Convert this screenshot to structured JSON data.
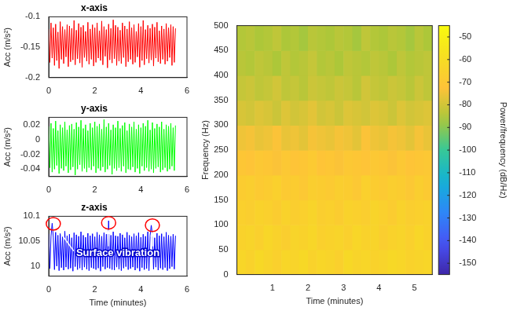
{
  "chart_data": [
    {
      "type": "line",
      "title": "x-axis",
      "y_label": "Acc (m/s²)",
      "grid": false,
      "xlim": [
        0,
        6
      ],
      "xticks": [
        0,
        2,
        4,
        6
      ],
      "ylim": [
        -0.2,
        -0.1
      ],
      "yticks": [
        -0.2,
        -0.15,
        -0.1
      ],
      "x": [
        0,
        0.05,
        0.1,
        0.15,
        0.2,
        0.25,
        0.3,
        0.35,
        0.4,
        0.45,
        0.5,
        0.55,
        0.6,
        0.65,
        0.7,
        0.75,
        0.8,
        0.85,
        0.9,
        0.95,
        1,
        1.05,
        1.1,
        1.15,
        1.2,
        1.25,
        1.3,
        1.35,
        1.4,
        1.45,
        1.5,
        1.55,
        1.6,
        1.65,
        1.7,
        1.75,
        1.8,
        1.85,
        1.9,
        1.95,
        2,
        2.05,
        2.1,
        2.15,
        2.2,
        2.25,
        2.3,
        2.35,
        2.4,
        2.45,
        2.5,
        2.55,
        2.6,
        2.65,
        2.7,
        2.75,
        2.8,
        2.85,
        2.9,
        2.95,
        3,
        3.05,
        3.1,
        3.15,
        3.2,
        3.25,
        3.3,
        3.35,
        3.4,
        3.45,
        3.5,
        3.55,
        3.6,
        3.65,
        3.7,
        3.75,
        3.8,
        3.85,
        3.9,
        3.95,
        4,
        4.05,
        4.1,
        4.15,
        4.2,
        4.25,
        4.3,
        4.35,
        4.4,
        4.45,
        4.5,
        4.55,
        4.6,
        4.65,
        4.7,
        4.75,
        4.8,
        4.85,
        4.9,
        4.95,
        5,
        5.05,
        5.1,
        5.15,
        5.2,
        5.25,
        5.3,
        5.35,
        5.4,
        5.45,
        5.5
      ],
      "series": [
        {
          "color": "#ff0000",
          "values": [
            -0.12,
            -0.175,
            -0.11,
            -0.168,
            -0.118,
            -0.18,
            -0.112,
            -0.172,
            -0.125,
            -0.185,
            -0.108,
            -0.17,
            -0.116,
            -0.177,
            -0.121,
            -0.166,
            -0.113,
            -0.182,
            -0.115,
            -0.174,
            -0.119,
            -0.171,
            -0.106,
            -0.179,
            -0.122,
            -0.169,
            -0.111,
            -0.176,
            -0.117,
            -0.183,
            -0.114,
            -0.167,
            -0.124,
            -0.173,
            -0.109,
            -0.178,
            -0.12,
            -0.17,
            -0.113,
            -0.181,
            -0.118,
            -0.175,
            -0.11,
            -0.168,
            -0.123,
            -0.172,
            -0.107,
            -0.179,
            -0.116,
            -0.165,
            -0.121,
            -0.184,
            -0.112,
            -0.171,
            -0.119,
            -0.176,
            -0.105,
            -0.169,
            -0.114,
            -0.18,
            -0.117,
            -0.173,
            -0.122,
            -0.177,
            -0.11,
            -0.167,
            -0.115,
            -0.182,
            -0.12,
            -0.174,
            -0.108,
            -0.17,
            -0.118,
            -0.178,
            -0.113,
            -0.175,
            -0.124,
            -0.166,
            -0.111,
            -0.183,
            -0.116,
            -0.172,
            -0.106,
            -0.179,
            -0.121,
            -0.169,
            -0.114,
            -0.176,
            -0.119,
            -0.171,
            -0.112,
            -0.181,
            -0.117,
            -0.168,
            -0.109,
            -0.174,
            -0.123,
            -0.177,
            -0.115,
            -0.17,
            -0.12,
            -0.178,
            -0.111,
            -0.173,
            -0.118,
            -0.167,
            -0.113,
            -0.18,
            -0.116,
            -0.175,
            -0.119
          ]
        }
      ]
    },
    {
      "type": "line",
      "title": "y-axis",
      "y_label": "Acc (m/s²)",
      "grid": false,
      "xlim": [
        0,
        6
      ],
      "xticks": [
        0,
        2,
        4,
        6
      ],
      "ylim": [
        -0.05,
        0.03
      ],
      "yticks": [
        -0.04,
        -0.02,
        0,
        0.02
      ],
      "x": [
        0,
        0.05,
        0.1,
        0.15,
        0.2,
        0.25,
        0.3,
        0.35,
        0.4,
        0.45,
        0.5,
        0.55,
        0.6,
        0.65,
        0.7,
        0.75,
        0.8,
        0.85,
        0.9,
        0.95,
        1,
        1.05,
        1.1,
        1.15,
        1.2,
        1.25,
        1.3,
        1.35,
        1.4,
        1.45,
        1.5,
        1.55,
        1.6,
        1.65,
        1.7,
        1.75,
        1.8,
        1.85,
        1.9,
        1.95,
        2,
        2.05,
        2.1,
        2.15,
        2.2,
        2.25,
        2.3,
        2.35,
        2.4,
        2.45,
        2.5,
        2.55,
        2.6,
        2.65,
        2.7,
        2.75,
        2.8,
        2.85,
        2.9,
        2.95,
        3,
        3.05,
        3.1,
        3.15,
        3.2,
        3.25,
        3.3,
        3.35,
        3.4,
        3.45,
        3.5,
        3.55,
        3.6,
        3.65,
        3.7,
        3.75,
        3.8,
        3.85,
        3.9,
        3.95,
        4,
        4.05,
        4.1,
        4.15,
        4.2,
        4.25,
        4.3,
        4.35,
        4.4,
        4.45,
        4.5,
        4.55,
        4.6,
        4.65,
        4.7,
        4.75,
        4.8,
        4.85,
        4.9,
        4.95,
        5,
        5.05,
        5.1,
        5.15,
        5.2,
        5.25,
        5.3,
        5.35,
        5.4,
        5.45,
        5.5
      ],
      "series": [
        {
          "color": "#00ff00",
          "values": [
            0.018,
            -0.038,
            0.022,
            -0.044,
            0.015,
            -0.04,
            0.025,
            -0.035,
            0.012,
            -0.046,
            0.02,
            -0.039,
            0.016,
            -0.042,
            0.024,
            -0.036,
            0.013,
            -0.045,
            0.019,
            -0.041,
            0.021,
            -0.037,
            0.014,
            -0.048,
            0.023,
            -0.04,
            0.017,
            -0.034,
            0.026,
            -0.043,
            0.015,
            -0.039,
            0.02,
            -0.044,
            0.012,
            -0.038,
            0.022,
            -0.041,
            0.016,
            -0.036,
            0.024,
            -0.045,
            0.018,
            -0.039,
            0.021,
            -0.042,
            0.014,
            -0.037,
            0.027,
            -0.044,
            0.017,
            -0.04,
            0.022,
            -0.035,
            0.013,
            -0.047,
            0.02,
            -0.039,
            0.016,
            -0.042,
            0.025,
            -0.038,
            0.015,
            -0.043,
            0.019,
            -0.036,
            0.023,
            -0.045,
            0.012,
            -0.04,
            0.021,
            -0.041,
            0.017,
            -0.037,
            0.024,
            -0.044,
            0.014,
            -0.039,
            0.02,
            -0.046,
            0.016,
            -0.036,
            0.022,
            -0.042,
            0.018,
            -0.038,
            0.026,
            -0.043,
            0.013,
            -0.04,
            0.023,
            -0.045,
            0.015,
            -0.039,
            0.021,
            -0.037,
            0.017,
            -0.044,
            0.024,
            -0.041,
            0.014,
            -0.038,
            0.02,
            -0.043,
            0.018,
            -0.04,
            0.022,
            -0.036,
            0.016,
            -0.042,
            0.019
          ]
        }
      ]
    },
    {
      "type": "line",
      "title": "z-axis",
      "x_label": "Time (minutes)",
      "y_label": "Acc (m/s²)",
      "grid": false,
      "xlim": [
        0,
        6
      ],
      "xticks": [
        0,
        2,
        4,
        6
      ],
      "ylim": [
        9.98,
        10.1
      ],
      "yticks": [
        10,
        10.05,
        10.1
      ],
      "x": [
        0,
        0.05,
        0.1,
        0.15,
        0.2,
        0.25,
        0.3,
        0.35,
        0.4,
        0.45,
        0.5,
        0.55,
        0.6,
        0.65,
        0.7,
        0.75,
        0.8,
        0.85,
        0.9,
        0.95,
        1,
        1.05,
        1.1,
        1.15,
        1.2,
        1.25,
        1.3,
        1.35,
        1.4,
        1.45,
        1.5,
        1.55,
        1.6,
        1.65,
        1.7,
        1.75,
        1.8,
        1.85,
        1.9,
        1.95,
        2,
        2.05,
        2.1,
        2.15,
        2.2,
        2.25,
        2.3,
        2.35,
        2.4,
        2.45,
        2.5,
        2.55,
        2.6,
        2.65,
        2.7,
        2.75,
        2.8,
        2.85,
        2.9,
        2.95,
        3,
        3.05,
        3.1,
        3.15,
        3.2,
        3.25,
        3.3,
        3.35,
        3.4,
        3.45,
        3.5,
        3.55,
        3.6,
        3.65,
        3.7,
        3.75,
        3.8,
        3.85,
        3.9,
        3.95,
        4,
        4.05,
        4.1,
        4.15,
        4.2,
        4.25,
        4.3,
        4.35,
        4.4,
        4.45,
        4.5,
        4.55,
        4.6,
        4.65,
        4.7,
        4.75,
        4.8,
        4.85,
        4.9,
        4.95,
        5,
        5.05,
        5.1,
        5.15,
        5.2,
        5.25,
        5.3,
        5.35,
        5.4,
        5.45,
        5.5
      ],
      "series": [
        {
          "color": "#0000ff",
          "values": [
            10.065,
            9.995,
            10.06,
            10.086,
            10.058,
            9.993,
            10.068,
            10.0,
            10.062,
            9.991,
            10.066,
            9.997,
            10.059,
            9.992,
            10.07,
            9.998,
            10.061,
            9.994,
            10.064,
            9.996,
            10.057,
            9.99,
            10.067,
            9.999,
            10.063,
            9.993,
            10.06,
            9.996,
            10.069,
            9.992,
            10.062,
            9.998,
            10.058,
            9.994,
            10.066,
            9.991,
            10.061,
            9.997,
            10.065,
            9.995,
            10.059,
            9.993,
            10.068,
            9.996,
            10.063,
            9.99,
            10.06,
            9.999,
            10.067,
            9.994,
            10.064,
            9.997,
            10.091,
            9.995,
            10.062,
            9.993,
            10.069,
            9.992,
            10.061,
            9.998,
            10.06,
            9.994,
            10.066,
            9.991,
            10.063,
            9.996,
            10.057,
            9.999,
            10.068,
            9.993,
            10.062,
            9.995,
            10.059,
            9.998,
            10.065,
            9.992,
            10.061,
            9.996,
            10.067,
            9.99,
            10.058,
            9.997,
            10.064,
            9.993,
            10.06,
            9.995,
            10.069,
            9.991,
            10.062,
            10.082,
            10.063,
            9.994,
            10.057,
            9.998,
            10.066,
            9.992,
            10.061,
            9.996,
            10.065,
            9.993,
            10.059,
            9.997,
            10.068,
            9.991,
            10.062,
            9.995,
            10.06,
            9.999,
            10.064,
            9.994,
            10.061
          ]
        }
      ],
      "annotations": [
        {
          "text": "Surface vibration",
          "color": "#ff0000",
          "points": [
            {
              "x": 0.2,
              "y": 10.085
            },
            {
              "x": 2.6,
              "y": 10.087
            },
            {
              "x": 4.5,
              "y": 10.082
            }
          ]
        }
      ]
    },
    {
      "type": "heatmap",
      "x_label": "Time (minutes)",
      "y_label": "Frequency (Hz)",
      "xlim": [
        0,
        5.5
      ],
      "xticks": [
        1,
        2,
        3,
        4,
        5
      ],
      "ylim": [
        0,
        500
      ],
      "yticks": [
        0,
        50,
        100,
        150,
        200,
        250,
        300,
        350,
        400,
        450,
        500
      ],
      "x_edges": [
        0,
        0.25,
        0.5,
        0.75,
        1,
        1.25,
        1.5,
        1.75,
        2,
        2.25,
        2.5,
        2.75,
        3,
        3.25,
        3.5,
        3.75,
        4,
        4.25,
        4.5,
        4.75,
        5,
        5.25,
        5.5
      ],
      "y_edges": [
        0,
        50,
        100,
        150,
        200,
        250,
        300,
        350,
        400,
        450,
        500
      ],
      "cells": [
        [
          -63,
          -65,
          -62,
          -64,
          -66,
          -63,
          -64,
          -62,
          -65,
          -63,
          -64,
          -66,
          -62,
          -64,
          -63,
          -65,
          -64,
          -62,
          -63,
          -65,
          -64,
          -63
        ],
        [
          -65,
          -64,
          -66,
          -63,
          -65,
          -67,
          -64,
          -65,
          -63,
          -66,
          -65,
          -64,
          -66,
          -63,
          -65,
          -64,
          -67,
          -65,
          -64,
          -66,
          -63,
          -65
        ],
        [
          -66,
          -67,
          -65,
          -66,
          -68,
          -65,
          -67,
          -66,
          -64,
          -67,
          -66,
          -68,
          -65,
          -66,
          -67,
          -64,
          -66,
          -68,
          -65,
          -67,
          -66,
          -65
        ],
        [
          -68,
          -67,
          -69,
          -68,
          -66,
          -69,
          -68,
          -70,
          -67,
          -68,
          -69,
          -67,
          -68,
          -70,
          -66,
          -68,
          -69,
          -67,
          -68,
          -70,
          -67,
          -69
        ],
        [
          -71,
          -72,
          -70,
          -71,
          -73,
          -70,
          -72,
          -71,
          -69,
          -72,
          -71,
          -73,
          -70,
          -71,
          -72,
          -70,
          -71,
          -73,
          -70,
          -72,
          -71,
          -70
        ],
        [
          -75,
          -74,
          -76,
          -75,
          -73,
          -76,
          -75,
          -77,
          -74,
          -75,
          -76,
          -74,
          -75,
          -77,
          -73,
          -75,
          -76,
          -74,
          -75,
          -77,
          -74,
          -76
        ],
        [
          -79,
          -80,
          -78,
          -79,
          -81,
          -78,
          -80,
          -79,
          -77,
          -80,
          -79,
          -81,
          -78,
          -79,
          -80,
          -78,
          -79,
          -81,
          -78,
          -80,
          -79,
          -78
        ],
        [
          -82,
          -81,
          -83,
          -82,
          -80,
          -83,
          -82,
          -84,
          -81,
          -82,
          -83,
          -81,
          -82,
          -84,
          -80,
          -82,
          -83,
          -81,
          -82,
          -84,
          -81,
          -83
        ],
        [
          -84,
          -85,
          -83,
          -84,
          -86,
          -83,
          -85,
          -84,
          -82,
          -85,
          -84,
          -86,
          -83,
          -84,
          -85,
          -83,
          -84,
          -86,
          -83,
          -85,
          -84,
          -83
        ],
        [
          -85,
          -84,
          -86,
          -85,
          -83,
          -86,
          -85,
          -87,
          -84,
          -85,
          -86,
          -84,
          -85,
          -87,
          -83,
          -85,
          -86,
          -84,
          -85,
          -87,
          -84,
          -86
        ]
      ],
      "colorbar": {
        "label": "Power/frequency (dB/Hz)",
        "range": [
          -155,
          -45
        ],
        "ticks": [
          -150,
          -140,
          -130,
          -120,
          -110,
          -100,
          -90,
          -80,
          -70,
          -60,
          -50
        ]
      }
    }
  ]
}
